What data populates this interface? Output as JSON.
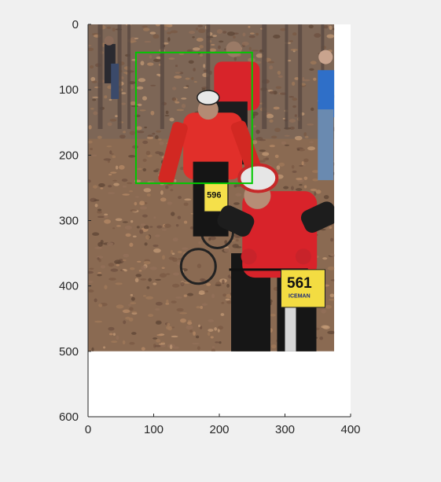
{
  "figure": {
    "background_color": "#f0f0f0",
    "axes_background_color": "#ffffff",
    "axis_color": "#262626"
  },
  "chart_data": {
    "type": "image",
    "title": "",
    "xlabel": "",
    "ylabel": "",
    "xlim": [
      0,
      400
    ],
    "ylim": [
      600,
      0
    ],
    "y_direction": "reverse",
    "x_ticks": [
      0,
      100,
      200,
      300,
      400
    ],
    "y_ticks": [
      0,
      100,
      200,
      300,
      400,
      500,
      600
    ],
    "x_tick_labels": [
      "0",
      "100",
      "200",
      "300",
      "400"
    ],
    "y_tick_labels": [
      "0",
      "100",
      "200",
      "300",
      "400",
      "500",
      "600"
    ],
    "image": {
      "description": "photo: two mountain bike racers in red jackets riding through leaf-covered woods with spectators",
      "extent_x": [
        0,
        375
      ],
      "extent_y": [
        0,
        500
      ],
      "number_plates": [
        "596",
        "561"
      ],
      "plate_text": "ICEMAN"
    },
    "bounding_box": {
      "color": "#00c800",
      "x": [
        73,
        250
      ],
      "y": [
        43,
        243
      ]
    },
    "grid": false
  }
}
